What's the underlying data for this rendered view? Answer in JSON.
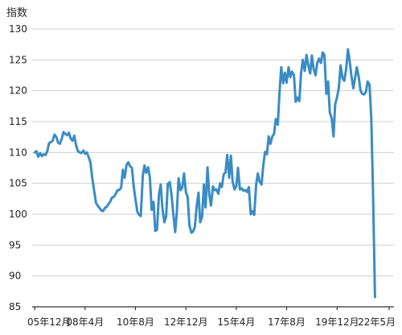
{
  "chart_data": {
    "type": "line",
    "ylabel": "指数",
    "ylim": [
      85,
      130
    ],
    "yticks": [
      130,
      125,
      120,
      115,
      110,
      105,
      100,
      95,
      90,
      85
    ],
    "xlim": [
      2005.8,
      2022.55
    ],
    "xticks": [
      {
        "label": "05年12月",
        "x": 2005.92
      },
      {
        "label": "08年4月",
        "x": 2008.25
      },
      {
        "label": "10年8月",
        "x": 2010.58
      },
      {
        "label": "12年12月",
        "x": 2012.92
      },
      {
        "label": "15年4月",
        "x": 2015.25
      },
      {
        "label": "17年8月",
        "x": 2017.58
      },
      {
        "label": "19年12月",
        "x": 2019.92
      },
      {
        "label": "22年5月",
        "x": 2022.33
      }
    ],
    "grid": true,
    "series": [
      {
        "color": "#3a8cc5",
        "points": [
          [
            2005.92,
            110.0
          ],
          [
            2006.0,
            110.2
          ],
          [
            2006.08,
            109.3
          ],
          [
            2006.17,
            109.9
          ],
          [
            2006.25,
            109.4
          ],
          [
            2006.33,
            109.7
          ],
          [
            2006.42,
            109.6
          ],
          [
            2006.5,
            110.2
          ],
          [
            2006.58,
            111.5
          ],
          [
            2006.67,
            111.7
          ],
          [
            2006.75,
            111.9
          ],
          [
            2006.83,
            112.9
          ],
          [
            2006.92,
            112.5
          ],
          [
            2007.0,
            111.6
          ],
          [
            2007.08,
            111.4
          ],
          [
            2007.17,
            112.2
          ],
          [
            2007.25,
            113.3
          ],
          [
            2007.33,
            113.0
          ],
          [
            2007.42,
            112.8
          ],
          [
            2007.5,
            113.2
          ],
          [
            2007.58,
            112.3
          ],
          [
            2007.67,
            111.9
          ],
          [
            2007.75,
            112.7
          ],
          [
            2007.83,
            111.2
          ],
          [
            2007.92,
            110.2
          ],
          [
            2008.0,
            110.0
          ],
          [
            2008.08,
            109.9
          ],
          [
            2008.17,
            110.3
          ],
          [
            2008.25,
            109.8
          ],
          [
            2008.33,
            110.0
          ],
          [
            2008.42,
            109.2
          ],
          [
            2008.5,
            108.4
          ],
          [
            2008.58,
            105.9
          ],
          [
            2008.67,
            103.8
          ],
          [
            2008.75,
            101.9
          ],
          [
            2008.83,
            101.4
          ],
          [
            2008.92,
            101.0
          ],
          [
            2009.0,
            100.6
          ],
          [
            2009.08,
            100.5
          ],
          [
            2009.17,
            101.0
          ],
          [
            2009.25,
            101.2
          ],
          [
            2009.33,
            101.6
          ],
          [
            2009.42,
            102.1
          ],
          [
            2009.5,
            102.7
          ],
          [
            2009.58,
            102.8
          ],
          [
            2009.67,
            103.3
          ],
          [
            2009.75,
            103.9
          ],
          [
            2009.83,
            103.9
          ],
          [
            2009.92,
            104.3
          ],
          [
            2010.0,
            107.2
          ],
          [
            2010.08,
            105.9
          ],
          [
            2010.17,
            108.0
          ],
          [
            2010.25,
            108.4
          ],
          [
            2010.33,
            107.8
          ],
          [
            2010.42,
            107.5
          ],
          [
            2010.5,
            104.5
          ],
          [
            2010.58,
            102.5
          ],
          [
            2010.67,
            100.4
          ],
          [
            2010.75,
            99.9
          ],
          [
            2010.83,
            99.7
          ],
          [
            2010.92,
            106.2
          ],
          [
            2011.0,
            107.9
          ],
          [
            2011.08,
            106.7
          ],
          [
            2011.17,
            107.6
          ],
          [
            2011.25,
            106.0
          ],
          [
            2011.33,
            100.7
          ],
          [
            2011.42,
            102.0
          ],
          [
            2011.5,
            97.3
          ],
          [
            2011.58,
            97.5
          ],
          [
            2011.67,
            103.2
          ],
          [
            2011.75,
            104.8
          ],
          [
            2011.83,
            101.0
          ],
          [
            2011.92,
            98.7
          ],
          [
            2012.0,
            99.6
          ],
          [
            2012.08,
            104.9
          ],
          [
            2012.17,
            105.2
          ],
          [
            2012.25,
            103.2
          ],
          [
            2012.33,
            100.2
          ],
          [
            2012.42,
            97.1
          ],
          [
            2012.5,
            100.5
          ],
          [
            2012.58,
            105.8
          ],
          [
            2012.67,
            103.9
          ],
          [
            2012.75,
            104.3
          ],
          [
            2012.83,
            106.6
          ],
          [
            2012.92,
            103.5
          ],
          [
            2013.0,
            102.8
          ],
          [
            2013.08,
            98.2
          ],
          [
            2013.17,
            97.0
          ],
          [
            2013.25,
            97.2
          ],
          [
            2013.33,
            97.9
          ],
          [
            2013.42,
            101.4
          ],
          [
            2013.5,
            103.5
          ],
          [
            2013.58,
            98.7
          ],
          [
            2013.67,
            99.6
          ],
          [
            2013.75,
            104.8
          ],
          [
            2013.83,
            101.1
          ],
          [
            2013.92,
            107.6
          ],
          [
            2014.0,
            103.2
          ],
          [
            2014.08,
            101.4
          ],
          [
            2014.17,
            104.5
          ],
          [
            2014.25,
            103.9
          ],
          [
            2014.33,
            104.0
          ],
          [
            2014.42,
            103.3
          ],
          [
            2014.5,
            105.0
          ],
          [
            2014.58,
            104.4
          ],
          [
            2014.67,
            106.5
          ],
          [
            2014.75,
            106.7
          ],
          [
            2014.83,
            109.6
          ],
          [
            2014.92,
            105.9
          ],
          [
            2015.0,
            109.5
          ],
          [
            2015.08,
            105.3
          ],
          [
            2015.17,
            104.0
          ],
          [
            2015.25,
            104.5
          ],
          [
            2015.33,
            107.5
          ],
          [
            2015.42,
            104.0
          ],
          [
            2015.5,
            104.2
          ],
          [
            2015.58,
            103.8
          ],
          [
            2015.67,
            103.9
          ],
          [
            2015.75,
            103.6
          ],
          [
            2015.83,
            104.4
          ],
          [
            2015.92,
            100.0
          ],
          [
            2016.0,
            100.5
          ],
          [
            2016.08,
            99.9
          ],
          [
            2016.17,
            104.8
          ],
          [
            2016.25,
            106.6
          ],
          [
            2016.33,
            105.3
          ],
          [
            2016.42,
            104.8
          ],
          [
            2016.5,
            107.9
          ],
          [
            2016.58,
            110.1
          ],
          [
            2016.67,
            109.7
          ],
          [
            2016.75,
            112.6
          ],
          [
            2016.83,
            111.4
          ],
          [
            2016.92,
            112.6
          ],
          [
            2017.0,
            113.0
          ],
          [
            2017.08,
            115.4
          ],
          [
            2017.17,
            114.5
          ],
          [
            2017.25,
            119.6
          ],
          [
            2017.33,
            123.8
          ],
          [
            2017.42,
            121.2
          ],
          [
            2017.5,
            122.9
          ],
          [
            2017.58,
            121.3
          ],
          [
            2017.67,
            123.8
          ],
          [
            2017.75,
            122.2
          ],
          [
            2017.83,
            123.1
          ],
          [
            2017.92,
            122.5
          ],
          [
            2018.0,
            118.2
          ],
          [
            2018.08,
            118.9
          ],
          [
            2018.17,
            118.3
          ],
          [
            2018.25,
            122.9
          ],
          [
            2018.33,
            125.0
          ],
          [
            2018.42,
            123.2
          ],
          [
            2018.5,
            125.8
          ],
          [
            2018.58,
            124.2
          ],
          [
            2018.67,
            122.8
          ],
          [
            2018.75,
            125.7
          ],
          [
            2018.83,
            123.5
          ],
          [
            2018.92,
            122.5
          ],
          [
            2019.0,
            124.5
          ],
          [
            2019.08,
            125.2
          ],
          [
            2019.17,
            124.5
          ],
          [
            2019.25,
            126.2
          ],
          [
            2019.33,
            125.8
          ],
          [
            2019.42,
            119.5
          ],
          [
            2019.5,
            121.5
          ],
          [
            2019.58,
            116.5
          ],
          [
            2019.67,
            115.5
          ],
          [
            2019.75,
            112.6
          ],
          [
            2019.83,
            117.8
          ],
          [
            2019.92,
            119.0
          ],
          [
            2020.0,
            120.5
          ],
          [
            2020.08,
            124.1
          ],
          [
            2020.17,
            122.0
          ],
          [
            2020.25,
            121.6
          ],
          [
            2020.33,
            123.4
          ],
          [
            2020.42,
            126.7
          ],
          [
            2020.5,
            124.8
          ],
          [
            2020.58,
            122.4
          ],
          [
            2020.67,
            120.4
          ],
          [
            2020.75,
            122.1
          ],
          [
            2020.83,
            123.8
          ],
          [
            2020.92,
            122.2
          ],
          [
            2021.0,
            120.0
          ],
          [
            2021.08,
            119.5
          ],
          [
            2021.17,
            119.4
          ],
          [
            2021.25,
            119.8
          ],
          [
            2021.33,
            121.5
          ],
          [
            2021.42,
            121.0
          ],
          [
            2021.5,
            115.5
          ],
          [
            2021.58,
            104.0
          ],
          [
            2021.67,
            86.6
          ]
        ]
      }
    ]
  }
}
